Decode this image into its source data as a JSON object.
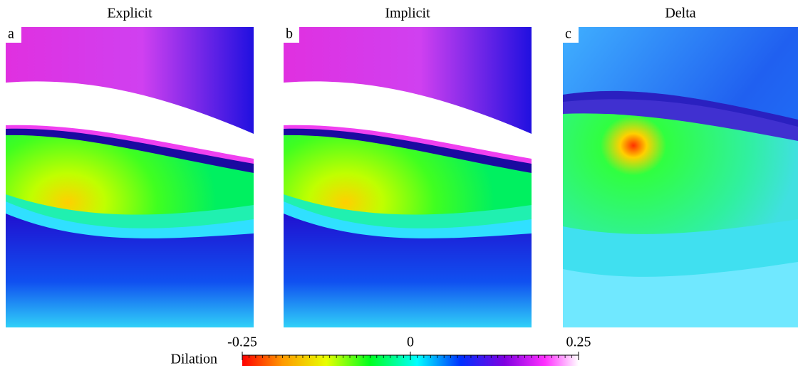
{
  "panels": [
    {
      "title": "Explicit",
      "letter": "a"
    },
    {
      "title": "Implicit",
      "letter": "b"
    },
    {
      "title": "Delta",
      "letter": "c"
    }
  ],
  "colorbar": {
    "label": "Dilation",
    "lim": [
      -0.25,
      0.25
    ],
    "ticks": [
      -0.25,
      0,
      0.25
    ]
  }
}
